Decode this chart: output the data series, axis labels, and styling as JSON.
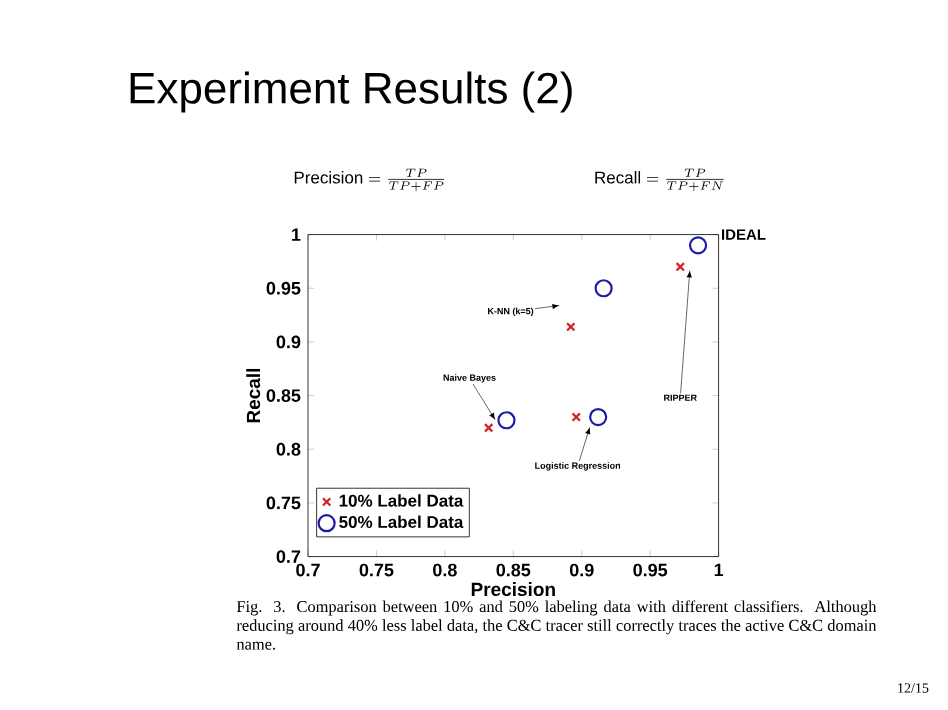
{
  "chart_data": {
    "type": "scatter",
    "title": "Experiment Results (2)",
    "xlabel": "Precision",
    "ylabel": "Recall",
    "xlim": [
      0.7,
      1
    ],
    "ylim": [
      0.7,
      1
    ],
    "xticks": [
      0.7,
      0.75,
      0.8,
      0.85,
      0.9,
      0.95,
      1
    ],
    "yticks": [
      0.7,
      0.75,
      0.8,
      0.85,
      0.9,
      0.95,
      1
    ],
    "grid": false,
    "legend": "bottom left",
    "series": [
      {
        "name": "10% Label Data",
        "color": "#d42020",
        "marker": "cross",
        "x": [
          0.832,
          0.892,
          0.896,
          0.972
        ],
        "values": [
          0.82,
          0.914,
          0.83,
          0.97
        ]
      },
      {
        "name": "50% Label Data",
        "color": "#1c1ca8",
        "marker": "circle",
        "x": [
          0.845,
          0.916,
          0.912,
          0.985
        ],
        "values": [
          0.827,
          0.95,
          0.83,
          0.99
        ]
      }
    ],
    "annotations": [
      "\\mathrm{Precision} = \\frac{TP}{TP+FP}",
      "\\mathrm{Recall} = \\frac{TP}{TP+FN}",
      "Fig. 3.   Comparison between 10% and 50% labeling data with different classifiers. Although reducing around 40% less label data, the C&C tracer still correctly traces the active C&C domain name.",
      "12/15",
      "IDEAL",
      {
        "text": "K-NN (k=5)",
        "x": 0.884,
        "y": 0.934
      },
      {
        "text": "Naive Bayes",
        "x": 0.837,
        "y": 0.827
      },
      {
        "text": "Logistic Regression",
        "x": 0.906,
        "y": 0.821
      },
      {
        "text": "RIPPER",
        "x": 0.979,
        "y": 0.967
      }
    ]
  }
}
